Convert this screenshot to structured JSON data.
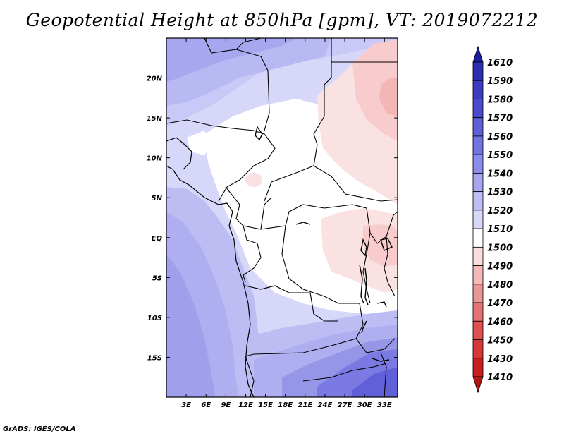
{
  "title": "Geopotential Height at 850hPa [gpm], VT: 2019072212",
  "credit": "GrADS: IGES/COLA",
  "map": {
    "lon_range": [
      0,
      35
    ],
    "lat_range": [
      -20,
      25
    ],
    "lat_ticks": [
      {
        "value": 20,
        "label": "20N"
      },
      {
        "value": 15,
        "label": "15N"
      },
      {
        "value": 10,
        "label": "10N"
      },
      {
        "value": 5,
        "label": "5N"
      },
      {
        "value": 0,
        "label": "EQ"
      },
      {
        "value": -5,
        "label": "5S"
      },
      {
        "value": -10,
        "label": "10S"
      },
      {
        "value": -15,
        "label": "15S"
      }
    ],
    "lon_ticks": [
      {
        "value": 3,
        "label": "3E"
      },
      {
        "value": 6,
        "label": "6E"
      },
      {
        "value": 9,
        "label": "9E"
      },
      {
        "value": 12,
        "label": "12E"
      },
      {
        "value": 15,
        "label": "15E"
      },
      {
        "value": 18,
        "label": "18E"
      },
      {
        "value": 21,
        "label": "21E"
      },
      {
        "value": 24,
        "label": "24E"
      },
      {
        "value": 27,
        "label": "27E"
      },
      {
        "value": 30,
        "label": "30E"
      },
      {
        "value": 33,
        "label": "33E"
      }
    ]
  },
  "colorbar": {
    "labels": [
      "1610",
      "1590",
      "1580",
      "1570",
      "1560",
      "1550",
      "1540",
      "1530",
      "1520",
      "1510",
      "1500",
      "1490",
      "1480",
      "1470",
      "1460",
      "1450",
      "1430",
      "1410"
    ],
    "colors": [
      "#1e1ea0",
      "#2d2db4",
      "#3c3cc3",
      "#4b4bcd",
      "#5f5fd7",
      "#7373e1",
      "#8c8ceb",
      "#a5a5f0",
      "#bebef5",
      "#d7d7fa",
      "#ffffff",
      "#fadcdc",
      "#f5b9b9",
      "#eb9696",
      "#e67373",
      "#e15050",
      "#d73737",
      "#c81e1e",
      "#b41414"
    ]
  }
}
